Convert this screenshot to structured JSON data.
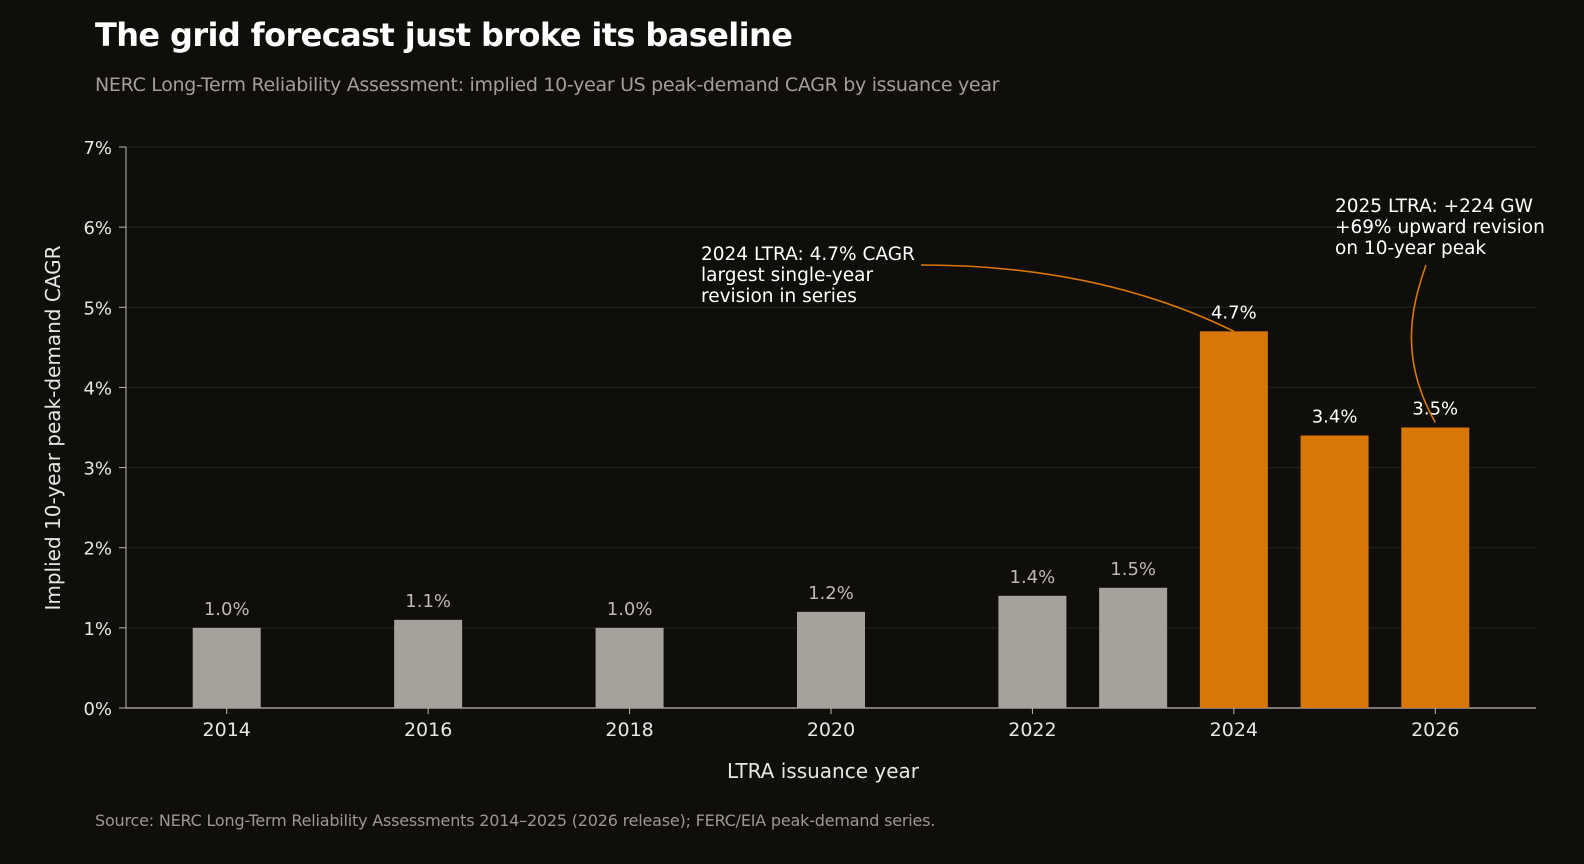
{
  "title": "The grid forecast just broke its baseline",
  "subtitle": "NERC Long-Term Reliability Assessment: implied 10-year US peak-demand CAGR by issuance year",
  "source": "Source: NERC Long-Term Reliability Assessments 2014–2025 (2026 release); FERC/EIA peak-demand series.",
  "colors": {
    "background": "#0f0e0b",
    "baseline_bar": "#a7a19b",
    "highlight_bar": "#d97706",
    "grid": "#26241f",
    "axis": "#bdb9b2",
    "text": "#e8e6e1",
    "muted_label": "#bdb9b2"
  },
  "chart_data": {
    "type": "bar",
    "title": "The grid forecast just broke its baseline",
    "subtitle": "NERC Long-Term Reliability Assessment: implied 10-year US peak-demand CAGR by issuance year",
    "xlabel": "LTRA issuance year",
    "ylabel": "Implied 10-year peak-demand CAGR",
    "x": [
      2014,
      2016,
      2018,
      2020,
      2022,
      2023,
      2024,
      2025,
      2026
    ],
    "values": [
      1.0,
      1.1,
      1.0,
      1.2,
      1.4,
      1.5,
      4.7,
      3.4,
      3.5
    ],
    "value_labels": [
      "1.0%",
      "1.1%",
      "1.0%",
      "1.2%",
      "1.4%",
      "1.5%",
      "4.7%",
      "3.4%",
      "3.5%"
    ],
    "highlighted": [
      false,
      false,
      false,
      false,
      false,
      false,
      true,
      true,
      true
    ],
    "xlim": [
      2013,
      2027
    ],
    "xticks": [
      2014,
      2016,
      2018,
      2020,
      2022,
      2024,
      2026
    ],
    "xtick_labels": [
      "2014",
      "2016",
      "2018",
      "2020",
      "2022",
      "2024",
      "2026"
    ],
    "ylim": [
      0,
      7
    ],
    "yticks": [
      0,
      1,
      2,
      3,
      4,
      5,
      6,
      7
    ],
    "ytick_labels": [
      "0%",
      "1%",
      "2%",
      "3%",
      "4%",
      "5%",
      "6%",
      "7%"
    ],
    "grid": true,
    "annotations": [
      {
        "target_year": 2024,
        "target_value": 4.7,
        "lines": [
          "2024 LTRA: 4.7% CAGR",
          "largest single-year",
          "revision in series"
        ]
      },
      {
        "target_year": 2026,
        "target_value": 3.5,
        "lines": [
          "2025 LTRA: +224 GW",
          "+69% upward revision",
          "on 10-year peak"
        ]
      }
    ]
  }
}
